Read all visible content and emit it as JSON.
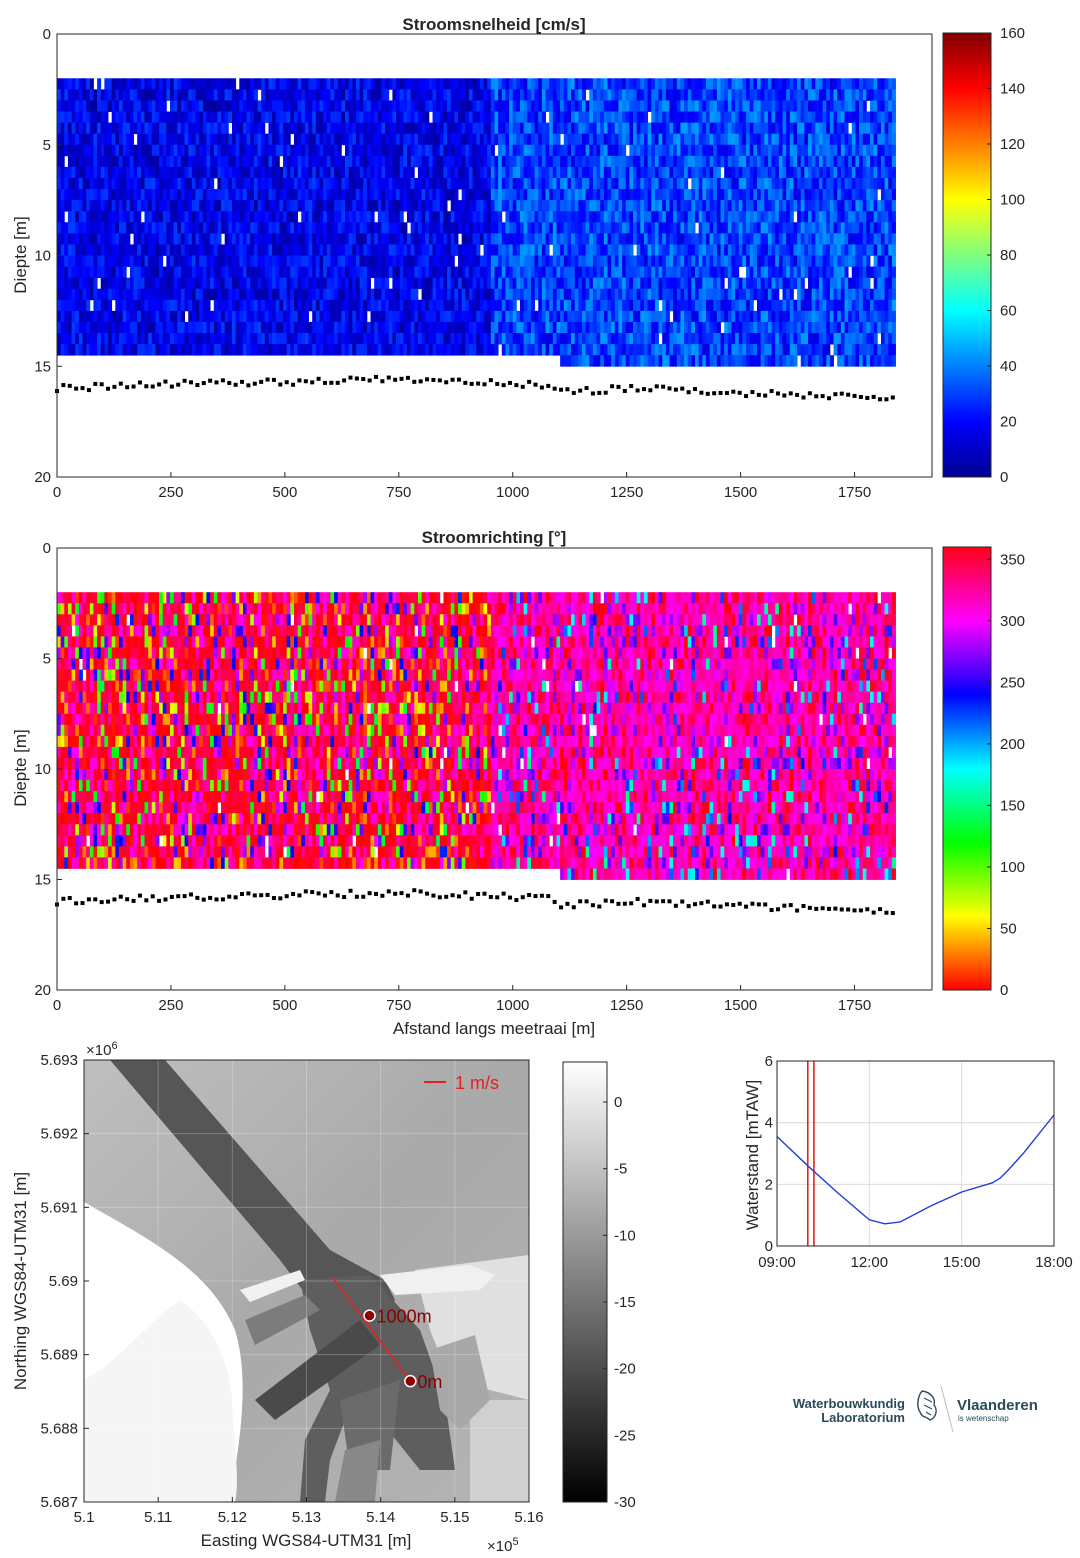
{
  "chart_data": [
    {
      "type": "heatmap",
      "title": "Stroomsnelheid [cm/s]",
      "xlabel": "",
      "ylabel": "Diepte [m]",
      "xlim": [
        0,
        1920
      ],
      "ylim": [
        20,
        0
      ],
      "xticks": [
        "0",
        "250",
        "500",
        "750",
        "1000",
        "1250",
        "1500",
        "1750"
      ],
      "yticks": [
        "0",
        "5",
        "10",
        "15",
        "20"
      ],
      "colorbar": {
        "min": 0,
        "max": 160,
        "ticks": [
          "0",
          "20",
          "40",
          "60",
          "80",
          "100",
          "120",
          "140",
          "160"
        ],
        "colormap": "jet"
      },
      "value_pattern": {
        "left_range": [
          5,
          30
        ],
        "right_range": [
          15,
          45
        ],
        "transition_x": 950
      },
      "data_extent": {
        "x": [
          0,
          1840
        ],
        "depth_top": 2,
        "depth_bottom_left": 14.5,
        "depth_bottom_right": 15
      },
      "bottom_profile": {
        "x": [
          0,
          250,
          500,
          750,
          1000,
          1080,
          1100,
          1250,
          1500,
          1750,
          1840
        ],
        "depth": [
          16.0,
          15.8,
          15.7,
          15.6,
          15.8,
          15.9,
          16.2,
          16.0,
          16.2,
          16.4,
          16.4
        ]
      }
    },
    {
      "type": "heatmap",
      "title": "Stroomrichting [°]",
      "xlabel": "Afstand langs meetraai [m]",
      "ylabel": "Diepte [m]",
      "xlim": [
        0,
        1920
      ],
      "ylim": [
        20,
        0
      ],
      "xticks": [
        "0",
        "250",
        "500",
        "750",
        "1000",
        "1250",
        "1500",
        "1750"
      ],
      "yticks": [
        "0",
        "5",
        "10",
        "15",
        "20"
      ],
      "colorbar": {
        "min": 0,
        "max": 360,
        "ticks": [
          "0",
          "50",
          "100",
          "150",
          "200",
          "250",
          "300",
          "350"
        ],
        "colormap": "hsv"
      },
      "value_pattern": {
        "left": "mixed, mostly 330-360",
        "right": "mostly 290-330",
        "transition_x": 950
      },
      "data_extent": {
        "x": [
          0,
          1840
        ],
        "depth_top": 2,
        "depth_bottom_left": 14.5,
        "depth_bottom_right": 15
      },
      "bottom_profile": {
        "x": [
          0,
          250,
          500,
          750,
          1000,
          1080,
          1100,
          1250,
          1500,
          1750,
          1840
        ],
        "depth": [
          16.0,
          15.8,
          15.7,
          15.6,
          15.8,
          15.9,
          16.2,
          16.0,
          16.2,
          16.4,
          16.4
        ]
      }
    },
    {
      "type": "heatmap",
      "title": "",
      "xlabel": "Easting WGS84-UTM31 [m]",
      "ylabel": "Northing WGS84-UTM31 [m]",
      "x_exponent": "×10",
      "x_exponent_power": "5",
      "y_exponent": "×10",
      "y_exponent_power": "6",
      "xlim": [
        510000,
        516000
      ],
      "ylim": [
        5687000,
        5693000
      ],
      "xticks": [
        "5.1",
        "5.11",
        "5.12",
        "5.13",
        "5.14",
        "5.15",
        "5.16"
      ],
      "yticks": [
        "5.687",
        "5.688",
        "5.689",
        "5.69",
        "5.691",
        "5.692",
        "5.693"
      ],
      "colorbar": {
        "min": -30,
        "max": 3,
        "ticks": [
          "-30",
          "-25",
          "-20",
          "-15",
          "-10",
          "-5",
          "0"
        ],
        "colormap": "gray"
      },
      "scale_label": "1 m/s",
      "markers": [
        {
          "label": "1000m",
          "easting": 513850,
          "northing": 5689530
        },
        {
          "label": "0m",
          "easting": 514400,
          "northing": 5688640
        }
      ],
      "transect": {
        "start": [
          513350,
          5690050
        ],
        "end": [
          514400,
          5688640
        ]
      }
    },
    {
      "type": "line",
      "title": "",
      "xlabel": "",
      "ylabel": "Waterstand [mTAW]",
      "x": [
        "09:00",
        "10:00",
        "11:00",
        "12:00",
        "12:30",
        "13:00",
        "14:00",
        "15:00",
        "16:00",
        "16:15",
        "16:30",
        "17:00",
        "18:00"
      ],
      "x_hours": [
        9,
        10,
        11,
        12,
        12.5,
        13,
        14,
        15,
        16,
        16.25,
        16.5,
        17,
        18
      ],
      "series": [
        {
          "values": [
            3.55,
            2.6,
            1.7,
            0.85,
            0.72,
            0.78,
            1.3,
            1.75,
            2.05,
            2.2,
            2.45,
            3.0,
            4.25
          ],
          "color": "#1f3fd9"
        }
      ],
      "xticks": [
        "09:00",
        "12:00",
        "15:00",
        "18:00"
      ],
      "yticks": [
        "0",
        "2",
        "4",
        "6"
      ],
      "xlim": [
        9,
        18
      ],
      "ylim": [
        0,
        6
      ],
      "grid": true,
      "vlines_hours": [
        10.0,
        10.2
      ],
      "vline_color": "#e8201c"
    }
  ],
  "logo": {
    "left_line1": "Waterbouwkundig",
    "left_line2": "Laboratorium",
    "right_line1": "Vlaanderen",
    "right_line2": "is wetenschap"
  }
}
